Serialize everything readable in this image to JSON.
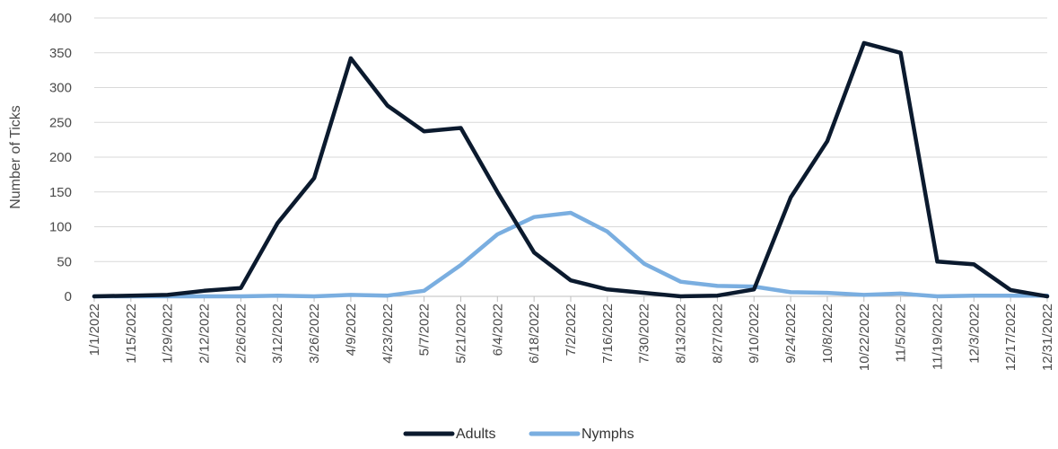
{
  "chart_data": {
    "type": "line",
    "title": "",
    "xlabel": "",
    "ylabel": "Number of Ticks",
    "ylim": [
      0,
      400
    ],
    "yticks": [
      0,
      50,
      100,
      150,
      200,
      250,
      300,
      350,
      400
    ],
    "grid": true,
    "legend_position": "bottom",
    "x": [
      "1/1/2022",
      "1/15/2022",
      "1/29/2022",
      "2/12/2022",
      "2/26/2022",
      "3/12/2022",
      "3/26/2022",
      "4/9/2022",
      "4/23/2022",
      "5/7/2022",
      "5/21/2022",
      "6/4/2022",
      "6/18/2022",
      "7/2/2022",
      "7/16/2022",
      "7/30/2022",
      "8/13/2022",
      "8/27/2022",
      "9/10/2022",
      "9/24/2022",
      "10/8/2022",
      "10/22/2022",
      "11/5/2022",
      "11/19/2022",
      "12/3/2022",
      "12/17/2022",
      "12/31/2022"
    ],
    "series": [
      {
        "name": "Adults",
        "color": "#0b1a2e",
        "values": [
          0,
          1,
          2,
          8,
          12,
          105,
          170,
          342,
          274,
          237,
          242,
          150,
          63,
          23,
          10,
          5,
          0,
          1,
          10,
          142,
          223,
          364,
          350,
          50,
          46,
          9,
          0
        ]
      },
      {
        "name": "Nymphs",
        "color": "#7aaee0",
        "values": [
          0,
          0,
          0,
          0,
          0,
          1,
          0,
          2,
          1,
          8,
          45,
          89,
          114,
          120,
          93,
          47,
          21,
          15,
          14,
          6,
          5,
          2,
          4,
          0,
          1,
          1,
          1
        ]
      }
    ]
  }
}
